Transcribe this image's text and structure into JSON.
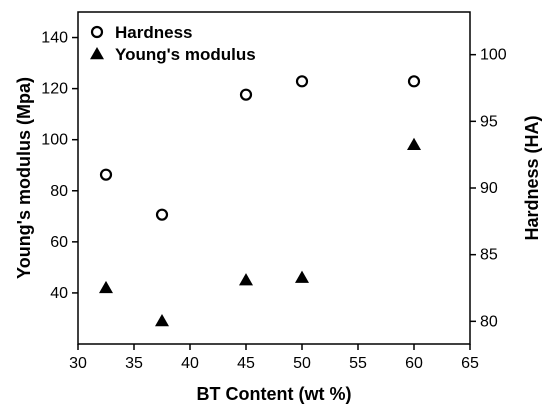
{
  "chart_data": {
    "type": "scatter",
    "title": "",
    "xlabel": "BT Content (wt %)",
    "ylabel_left": "Young's modulus (Mpa)",
    "ylabel_right": "Hardness (HA)",
    "xlim": [
      30,
      65
    ],
    "ylim_left": [
      20,
      150
    ],
    "ylim_right": [
      78.3,
      103.2
    ],
    "x_ticks": [
      30,
      35,
      40,
      45,
      50,
      55,
      60,
      65
    ],
    "y_left_ticks": [
      40,
      60,
      80,
      100,
      120,
      140
    ],
    "y_right_ticks": [
      80,
      85,
      90,
      95,
      100
    ],
    "grid": false,
    "legend_position": "top-left",
    "series": [
      {
        "name": "Hardness",
        "axis": "right",
        "marker": "open-circle",
        "color": "#000000",
        "x": [
          32.5,
          37.5,
          45,
          50,
          60
        ],
        "y": [
          91,
          88,
          97,
          98,
          98
        ]
      },
      {
        "name": "Young's modulus",
        "axis": "left",
        "marker": "filled-triangle",
        "color": "#000000",
        "x": [
          32.5,
          37.5,
          45,
          50,
          60
        ],
        "y": [
          42,
          29,
          45,
          46,
          98
        ]
      }
    ]
  }
}
